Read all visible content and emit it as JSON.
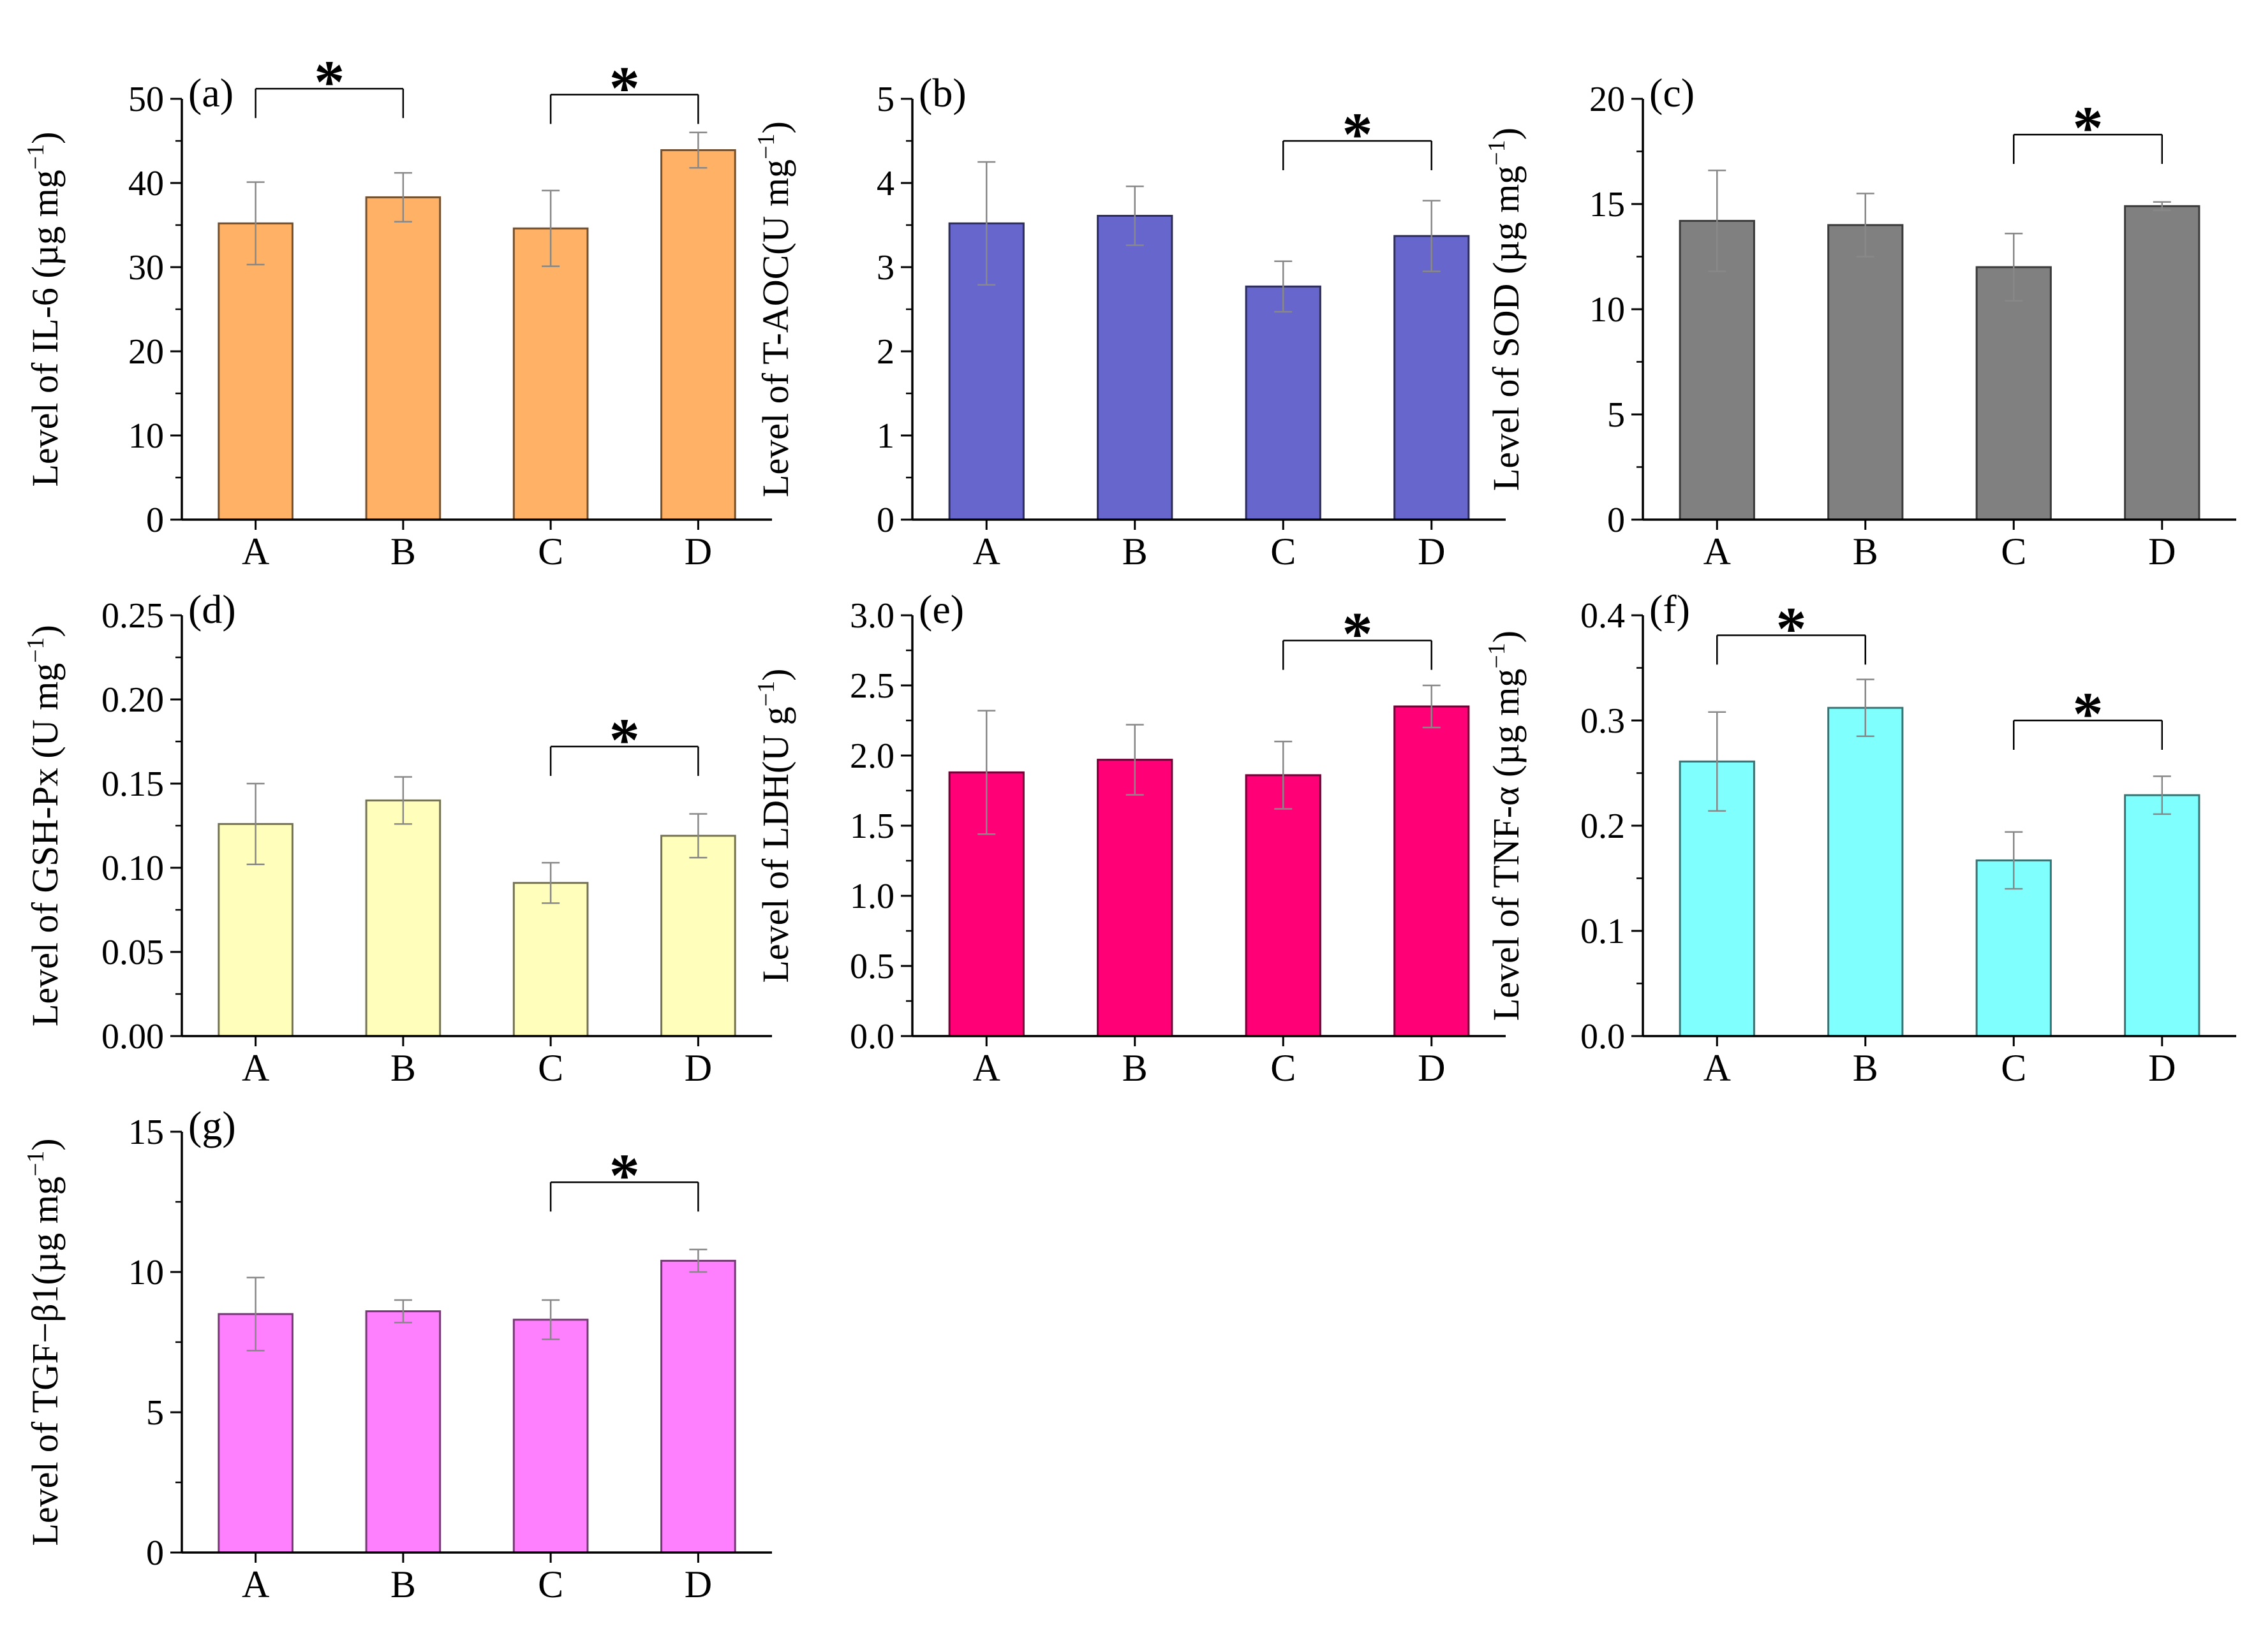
{
  "chart_data": [
    {
      "type": "bar",
      "panel": "(a)",
      "categories": [
        "A",
        "B",
        "C",
        "D"
      ],
      "values": [
        35.2,
        38.3,
        34.6,
        43.9
      ],
      "errors": [
        4.9,
        2.9,
        4.5,
        2.1
      ],
      "ylabel_main": "Level of IL-6 (µg mg",
      "ylabel_sup": "−1",
      "ylabel_end": ")",
      "ylim": [
        0,
        50
      ],
      "yticks": [
        0,
        10,
        20,
        30,
        40,
        50
      ],
      "tick_labels": [
        "0",
        "10",
        "20",
        "30",
        "40",
        "50"
      ],
      "color": "#FFB266",
      "significance": [
        {
          "from": 0,
          "to": 1,
          "y": 51.2,
          "label": "*"
        },
        {
          "from": 2,
          "to": 3,
          "y": 50.5,
          "label": "*"
        }
      ]
    },
    {
      "type": "bar",
      "panel": "(b)",
      "categories": [
        "A",
        "B",
        "C",
        "D"
      ],
      "values": [
        3.52,
        3.61,
        2.77,
        3.37
      ],
      "errors": [
        0.73,
        0.35,
        0.3,
        0.42
      ],
      "ylabel_main": "Level of T-AOC(U mg",
      "ylabel_sup": "−1",
      "ylabel_end": ")",
      "ylim": [
        0,
        5
      ],
      "yticks": [
        0,
        1,
        2,
        3,
        4,
        5
      ],
      "tick_labels": [
        "0",
        "1",
        "2",
        "3",
        "4",
        "5"
      ],
      "color": "#6666CC",
      "significance": [
        {
          "from": 2,
          "to": 3,
          "y": 4.5,
          "label": "*"
        }
      ]
    },
    {
      "type": "bar",
      "panel": "(c)",
      "categories": [
        "A",
        "B",
        "C",
        "D"
      ],
      "values": [
        14.2,
        14.0,
        12.0,
        14.9
      ],
      "errors": [
        2.4,
        1.5,
        1.6,
        0.2
      ],
      "ylabel_main": "Level of SOD (µg mg",
      "ylabel_sup": "−1",
      "ylabel_end": ")",
      "ylim": [
        0,
        20
      ],
      "yticks": [
        0,
        5,
        10,
        15,
        20
      ],
      "tick_labels": [
        "0",
        "5",
        "10",
        "15",
        "20"
      ],
      "color": "#808080",
      "significance": [
        {
          "from": 2,
          "to": 3,
          "y": 18.3,
          "label": "*"
        }
      ]
    },
    {
      "type": "bar",
      "panel": "(d)",
      "categories": [
        "A",
        "B",
        "C",
        "D"
      ],
      "values": [
        0.126,
        0.14,
        0.091,
        0.119
      ],
      "errors": [
        0.024,
        0.014,
        0.012,
        0.013
      ],
      "ylabel_main": "Level of GSH-Px (U mg",
      "ylabel_sup": "−1",
      "ylabel_end": ")",
      "ylim": [
        0,
        0.25
      ],
      "yticks": [
        0,
        0.05,
        0.1,
        0.15,
        0.2,
        0.25
      ],
      "tick_labels": [
        "0.00",
        "0.05",
        "0.10",
        "0.15",
        "0.20",
        "0.25"
      ],
      "color": "#FFFFBB",
      "significance": [
        {
          "from": 2,
          "to": 3,
          "y": 0.172,
          "label": "*"
        }
      ]
    },
    {
      "type": "bar",
      "panel": "(e)",
      "categories": [
        "A",
        "B",
        "C",
        "D"
      ],
      "values": [
        1.88,
        1.97,
        1.86,
        2.35
      ],
      "errors": [
        0.44,
        0.25,
        0.24,
        0.15
      ],
      "ylabel_main": "Level of LDH(U g",
      "ylabel_sup": "−1",
      "ylabel_end": ")",
      "ylim": [
        0,
        3.0
      ],
      "yticks": [
        0,
        0.5,
        1.0,
        1.5,
        2.0,
        2.5,
        3.0
      ],
      "tick_labels": [
        "0.0",
        "0.5",
        "1.0",
        "1.5",
        "2.0",
        "2.5",
        "3.0"
      ],
      "color": "#FF0077",
      "significance": [
        {
          "from": 2,
          "to": 3,
          "y": 2.82,
          "label": "*"
        }
      ]
    },
    {
      "type": "bar",
      "panel": "(f)",
      "categories": [
        "A",
        "B",
        "C",
        "D"
      ],
      "values": [
        0.261,
        0.312,
        0.167,
        0.229
      ],
      "errors": [
        0.047,
        0.027,
        0.027,
        0.018
      ],
      "ylabel_main": "Level of TNF-α (µg mg",
      "ylabel_sup": "−1",
      "ylabel_end": ")",
      "ylim": [
        0,
        0.4
      ],
      "yticks": [
        0,
        0.1,
        0.2,
        0.3,
        0.4
      ],
      "tick_labels": [
        "0.0",
        "0.1",
        "0.2",
        "0.3",
        "0.4"
      ],
      "color": "#80FFFF",
      "significance": [
        {
          "from": 0,
          "to": 1,
          "y": 0.381,
          "label": "*"
        },
        {
          "from": 2,
          "to": 3,
          "y": 0.3,
          "label": "*"
        }
      ]
    },
    {
      "type": "bar",
      "panel": "(g)",
      "categories": [
        "A",
        "B",
        "C",
        "D"
      ],
      "values": [
        8.5,
        8.6,
        8.3,
        10.4
      ],
      "errors": [
        1.3,
        0.4,
        0.7,
        0.4
      ],
      "ylabel_main": "Level of TGF−β1(µg mg",
      "ylabel_sup": "−1",
      "ylabel_end": ")",
      "ylim": [
        0,
        15
      ],
      "yticks": [
        0,
        5,
        10,
        15
      ],
      "tick_labels": [
        "0",
        "5",
        "10",
        "15"
      ],
      "color": "#FF80FF",
      "significance": [
        {
          "from": 2,
          "to": 3,
          "y": 13.2,
          "label": "*"
        }
      ]
    }
  ]
}
